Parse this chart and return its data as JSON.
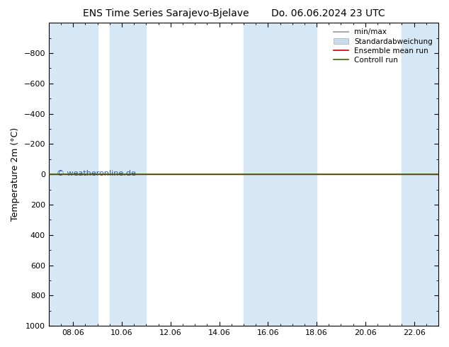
{
  "title": "ENS Time Series Sarajevo-Bjelave",
  "title2": "Do. 06.06.2024 23 UTC",
  "ylabel": "Temperature 2m (°C)",
  "watermark": "© weatheronline.de",
  "ylim_bottom": 1000,
  "ylim_top": -1000,
  "yticks": [
    -800,
    -600,
    -400,
    -200,
    0,
    200,
    400,
    600,
    800,
    1000
  ],
  "x_dates": [
    "08.06",
    "10.06",
    "12.06",
    "14.06",
    "16.06",
    "18.06",
    "20.06",
    "22.06"
  ],
  "x_positions": [
    1,
    3,
    5,
    7,
    9,
    11,
    13,
    15
  ],
  "xlim": [
    0,
    16
  ],
  "blue_bands": [
    [
      0.0,
      2.0
    ],
    [
      2.5,
      4.0
    ],
    [
      8.0,
      9.5
    ],
    [
      9.5,
      11.0
    ],
    [
      14.5,
      16.0
    ]
  ],
  "band_color": "#d6e8f5",
  "line_y_green": 0,
  "line_y_red": 0,
  "green_color": "#336600",
  "red_color": "#cc0000",
  "minmax_color": "#aaaaaa",
  "std_color": "#c8ddf0",
  "background_color": "#ffffff",
  "watermark_color": "#3355aa",
  "title_fontsize": 10,
  "legend_fontsize": 7.5,
  "tick_fontsize": 8,
  "ylabel_fontsize": 9
}
